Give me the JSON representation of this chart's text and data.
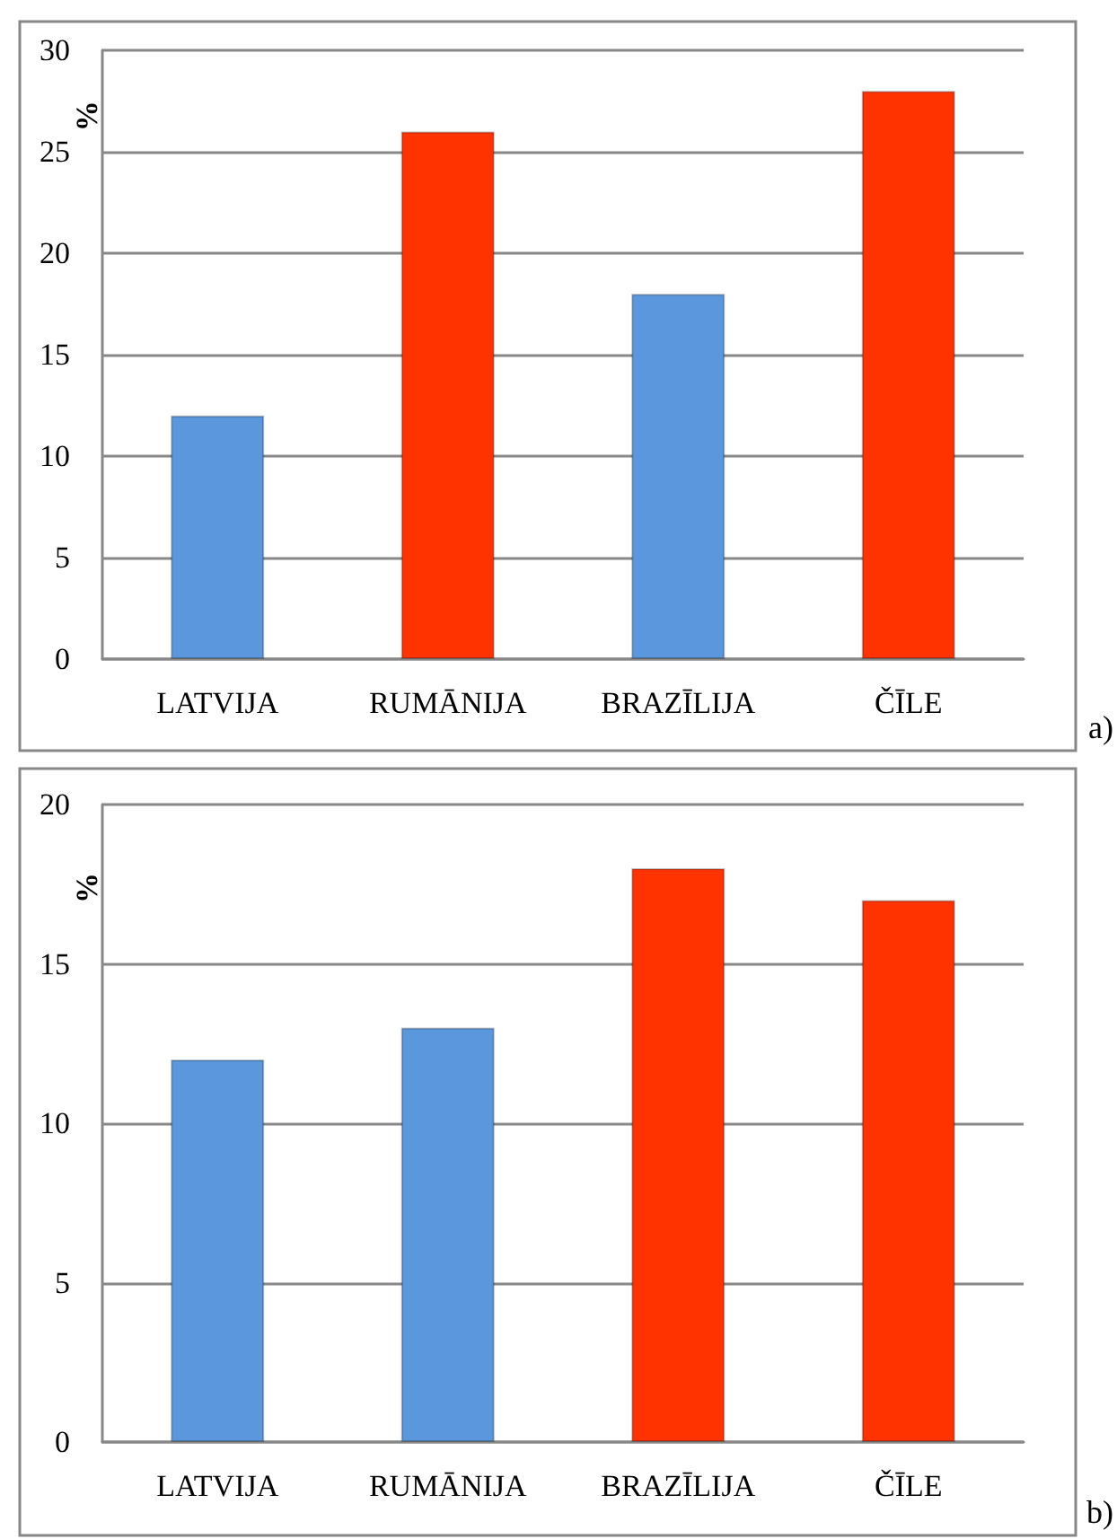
{
  "chart_data": [
    {
      "type": "bar",
      "ylabel": "%",
      "categories": [
        "LATVIJA",
        "RUMĀNIJA",
        "BRAZĪLIJA",
        "ČĪLE"
      ],
      "values": [
        12,
        26,
        18,
        28
      ],
      "colors": [
        "#5b97dd",
        "#ff3300",
        "#5b97dd",
        "#ff3300"
      ],
      "ylim": [
        0,
        30
      ],
      "yticks": [
        0,
        5,
        10,
        15,
        20,
        25,
        30
      ],
      "grid": "y",
      "annotations": [
        "a)"
      ]
    },
    {
      "type": "bar",
      "ylabel": "%",
      "categories": [
        "LATVIJA",
        "RUMĀNIJA",
        "BRAZĪLIJA",
        "ČĪLE"
      ],
      "values": [
        12,
        13,
        18,
        17
      ],
      "colors": [
        "#5b97dd",
        "#5b97dd",
        "#ff3300",
        "#ff3300"
      ],
      "ylim": [
        0,
        20
      ],
      "yticks": [
        0,
        5,
        10,
        15,
        20
      ],
      "grid": "y",
      "annotations": [
        "b)"
      ]
    }
  ]
}
